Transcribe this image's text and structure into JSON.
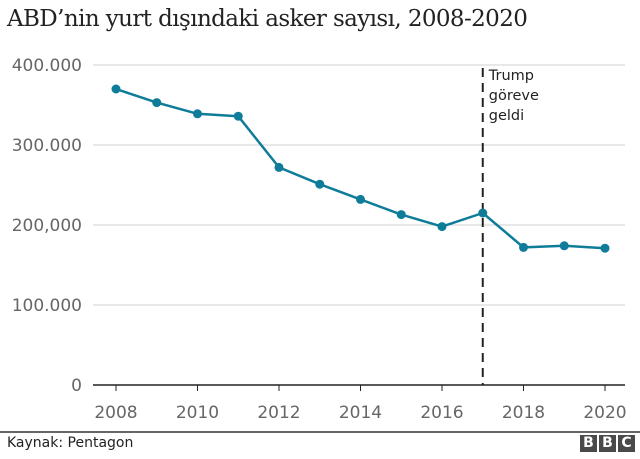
{
  "title": "ABD’nin yurt dışındaki asker sayısı, 2008-2020",
  "footer": {
    "source": "Kaynak: Pentagon",
    "logo_letters": [
      "B",
      "B",
      "C"
    ]
  },
  "colors": {
    "line": "#0f7c99",
    "grid": "#d0d0d0",
    "axis": "#222222",
    "tick_text": "#666666",
    "annotation_line": "#222222",
    "logo_bg": "#4a4a4a"
  },
  "chart_data": {
    "type": "line",
    "title": "ABD’nin yurt dışındaki asker sayısı, 2008-2020",
    "xlabel": "",
    "ylabel": "",
    "x": [
      2008,
      2009,
      2010,
      2011,
      2012,
      2013,
      2014,
      2015,
      2016,
      2017,
      2018,
      2019,
      2020
    ],
    "series": [
      {
        "name": "ABD’nin yurt dışındaki asker sayısı",
        "values": [
          370000,
          353000,
          339000,
          336000,
          272000,
          251000,
          232000,
          213000,
          198000,
          215000,
          172000,
          174000,
          171000
        ]
      }
    ],
    "ylim": [
      0,
      400000
    ],
    "xlim": [
      2008,
      2020
    ],
    "yticks": [
      0,
      100000,
      200000,
      300000,
      400000
    ],
    "ytick_labels": [
      "0",
      "100.000",
      "200,000",
      "300.000",
      "400.000"
    ],
    "xticks": [
      2008,
      2010,
      2012,
      2014,
      2016,
      2018,
      2020
    ],
    "xtick_labels": [
      "2008",
      "2010",
      "2012",
      "2014",
      "2016",
      "2018",
      "2020"
    ],
    "grid": true,
    "legend": "none",
    "annotations": [
      {
        "type": "vline",
        "x": 2017,
        "style": "dashed",
        "label_lines": [
          "Trump",
          "göreve",
          "geldi"
        ]
      }
    ],
    "source": "Kaynak: Pentagon"
  }
}
